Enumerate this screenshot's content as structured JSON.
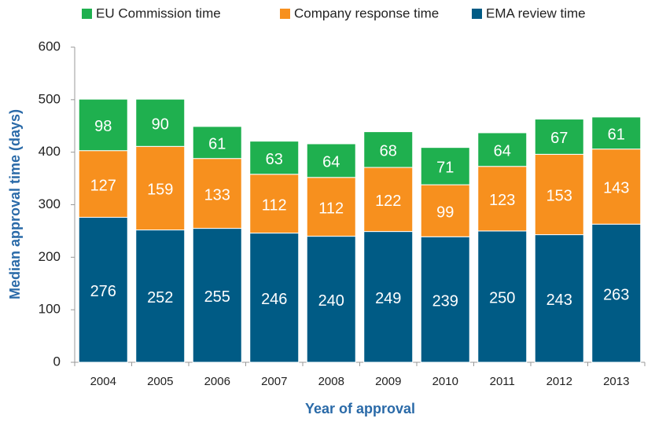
{
  "chart_data": {
    "type": "stacked_bar",
    "x_label": "Year of approval",
    "y_label": "Median approval time (days)",
    "categories": [
      "2004",
      "2005",
      "2006",
      "2007",
      "2008",
      "2009",
      "2010",
      "2011",
      "2012",
      "2013"
    ],
    "series": [
      {
        "name": "EU Commission time",
        "color": "#1fb04f",
        "values": [
          98,
          90,
          61,
          63,
          64,
          68,
          71,
          64,
          67,
          61
        ]
      },
      {
        "name": "Company response time",
        "color": "#f7901e",
        "values": [
          127,
          159,
          133,
          112,
          112,
          122,
          99,
          123,
          153,
          143
        ]
      },
      {
        "name": "EMA review time",
        "color": "#005b85",
        "values": [
          276,
          252,
          255,
          246,
          240,
          249,
          239,
          250,
          243,
          263
        ]
      }
    ],
    "ylim": [
      0,
      600
    ],
    "yticks": [
      0,
      100,
      200,
      300,
      400,
      500,
      600
    ],
    "grid": false,
    "legend": "top"
  }
}
